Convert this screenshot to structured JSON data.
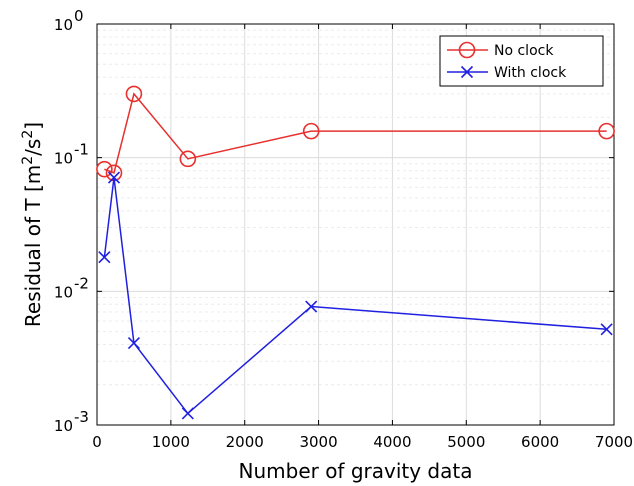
{
  "chart_data": {
    "type": "line",
    "xlabel": "Number of gravity data",
    "ylabel_main": "Residual of T [m",
    "ylabel_sup1": "2",
    "ylabel_mid": "/s",
    "ylabel_sup2": "2",
    "ylabel_end": "]",
    "xlim": [
      0,
      7000
    ],
    "ylim": [
      0.001,
      1
    ],
    "yscale": "log",
    "grid": true,
    "legend_position": "top-right",
    "x_ticks": [
      "0",
      "1000",
      "2000",
      "3000",
      "4000",
      "5000",
      "6000",
      "7000"
    ],
    "y_ticks": [
      {
        "base": "10",
        "exp": "-3"
      },
      {
        "base": "10",
        "exp": "-2"
      },
      {
        "base": "10",
        "exp": "-1"
      },
      {
        "base": "10",
        "exp": "0"
      }
    ],
    "series": [
      {
        "name": "No clock",
        "color": "#e8302e",
        "marker": "circle",
        "x": [
          100,
          230,
          500,
          1230,
          2900,
          6900
        ],
        "y": [
          0.082,
          0.077,
          0.3,
          0.098,
          0.158,
          0.158
        ]
      },
      {
        "name": "With clock",
        "color": "#2020e0",
        "marker": "x",
        "x": [
          100,
          230,
          500,
          1230,
          2900,
          6900
        ],
        "y": [
          0.018,
          0.071,
          0.0041,
          0.00122,
          0.0077,
          0.0052
        ]
      }
    ]
  }
}
